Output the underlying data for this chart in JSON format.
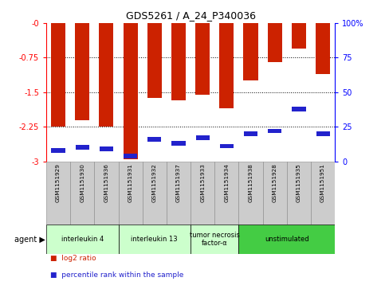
{
  "title": "GDS5261 / A_24_P340036",
  "samples": [
    "GSM1151929",
    "GSM1151930",
    "GSM1151936",
    "GSM1151931",
    "GSM1151932",
    "GSM1151937",
    "GSM1151933",
    "GSM1151934",
    "GSM1151938",
    "GSM1151928",
    "GSM1151935",
    "GSM1151951"
  ],
  "log2_ratio": [
    -2.25,
    -2.1,
    -2.25,
    -2.95,
    -1.63,
    -1.68,
    -1.55,
    -1.85,
    -1.25,
    -0.85,
    -0.55,
    -1.1
  ],
  "percentile": [
    8,
    10,
    9,
    4,
    16,
    13,
    17,
    11,
    20,
    22,
    38,
    20
  ],
  "groups": [
    {
      "label": "interleukin 4",
      "start": 0,
      "end": 2,
      "color": "#ccffcc"
    },
    {
      "label": "interleukin 13",
      "start": 3,
      "end": 5,
      "color": "#ccffcc"
    },
    {
      "label": "tumor necrosis\nfactor-α",
      "start": 6,
      "end": 7,
      "color": "#ccffcc"
    },
    {
      "label": "unstimulated",
      "start": 8,
      "end": 11,
      "color": "#44cc44"
    }
  ],
  "bar_color": "#cc2200",
  "blue_color": "#2222cc",
  "ymin": -3.0,
  "ymax": 0.0,
  "yticks_left": [
    0.0,
    -0.75,
    -1.5,
    -2.25,
    -3.0
  ],
  "ytick_labels_left": [
    "-0",
    "-0.75",
    "-1.5",
    "-2.25",
    "-3"
  ],
  "yticks_right": [
    0,
    25,
    50,
    75,
    100
  ],
  "ytick_labels_right": [
    "0",
    "25",
    "50",
    "75",
    "100%"
  ],
  "bar_width": 0.6,
  "background_color": "#ffffff",
  "bar_edgecolor": "none",
  "agent_label": "agent",
  "legend_log2": "log2 ratio",
  "legend_pct": "percentile rank within the sample",
  "grid_yticks": [
    -0.75,
    -1.5,
    -2.25
  ]
}
